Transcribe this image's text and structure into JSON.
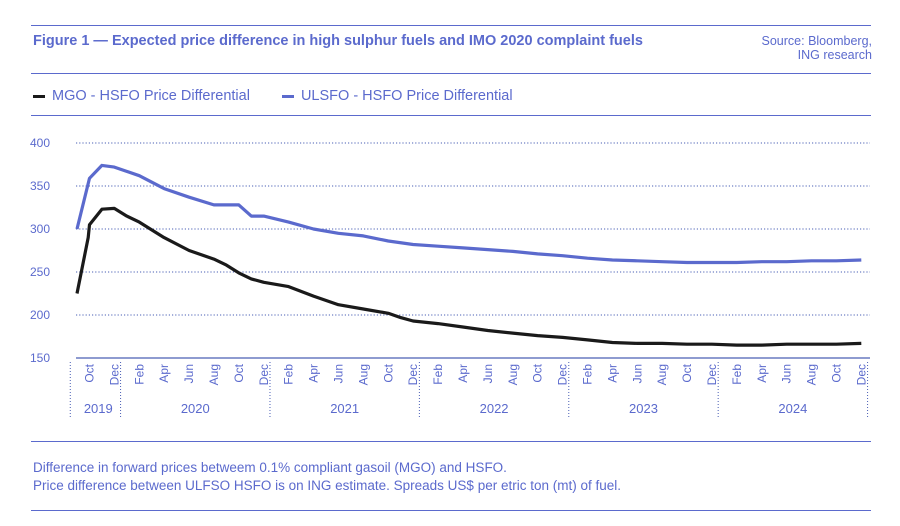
{
  "header": {
    "title": "Figure 1 — Expected price difference in high sulphur fuels and IMO 2020 complaint fuels",
    "source_line1": "Source: Bloomberg,",
    "source_line2": "ING research"
  },
  "legend": {
    "items": [
      {
        "label": "MGO - HSFO Price Differential",
        "color": "#1a1a1a"
      },
      {
        "label": "ULSFO - HSFO Price Differential",
        "color": "#5b6acd"
      }
    ]
  },
  "footnote": {
    "line1": "Difference in forward prices betweem 0.1% compliant gasoil (MGO) and HSFO.",
    "line2": "Price difference between ULFSO HSFO is on ING estimate. Spreads US$ per etric ton (mt) of fuel."
  },
  "chart_data": {
    "type": "line",
    "title": "Figure 1 — Expected price difference in high sulphur fuels and IMO 2020 complaint fuels",
    "xlabel": "",
    "ylabel": "",
    "ylim": [
      150,
      400
    ],
    "yticks": [
      150,
      200,
      250,
      300,
      350,
      400
    ],
    "grid": true,
    "legend_position": "top-left",
    "x_start": "2019-09",
    "month_tick_labels": [
      {
        "month_index": 1,
        "label": "Oct"
      },
      {
        "month_index": 3,
        "label": "Dec"
      },
      {
        "month_index": 5,
        "label": "Feb"
      },
      {
        "month_index": 7,
        "label": "Apr"
      },
      {
        "month_index": 9,
        "label": "Jun"
      },
      {
        "month_index": 11,
        "label": "Aug"
      },
      {
        "month_index": 13,
        "label": "Oct"
      },
      {
        "month_index": 15,
        "label": "Dec"
      },
      {
        "month_index": 17,
        "label": "Feb"
      },
      {
        "month_index": 19,
        "label": "Apr"
      },
      {
        "month_index": 21,
        "label": "Jun"
      },
      {
        "month_index": 23,
        "label": "Aug"
      },
      {
        "month_index": 25,
        "label": "Oct"
      },
      {
        "month_index": 27,
        "label": "Dec"
      },
      {
        "month_index": 29,
        "label": "Feb"
      },
      {
        "month_index": 31,
        "label": "Apr"
      },
      {
        "month_index": 33,
        "label": "Jun"
      },
      {
        "month_index": 35,
        "label": "Aug"
      },
      {
        "month_index": 37,
        "label": "Oct"
      },
      {
        "month_index": 39,
        "label": "Dec"
      },
      {
        "month_index": 41,
        "label": "Feb"
      },
      {
        "month_index": 43,
        "label": "Apr"
      },
      {
        "month_index": 45,
        "label": "Jun"
      },
      {
        "month_index": 47,
        "label": "Aug"
      },
      {
        "month_index": 49,
        "label": "Oct"
      },
      {
        "month_index": 51,
        "label": "Dec"
      },
      {
        "month_index": 53,
        "label": "Feb"
      },
      {
        "month_index": 55,
        "label": "Apr"
      },
      {
        "month_index": 57,
        "label": "Jun"
      },
      {
        "month_index": 59,
        "label": "Aug"
      },
      {
        "month_index": 61,
        "label": "Oct"
      },
      {
        "month_index": 63,
        "label": "Dec"
      }
    ],
    "year_groups": [
      {
        "label": "2019",
        "start_index": 0,
        "end_index": 3
      },
      {
        "label": "2020",
        "start_index": 4,
        "end_index": 15
      },
      {
        "label": "2021",
        "start_index": 16,
        "end_index": 27
      },
      {
        "label": "2022",
        "start_index": 28,
        "end_index": 39
      },
      {
        "label": "2023",
        "start_index": 40,
        "end_index": 51
      },
      {
        "label": "2024",
        "start_index": 52,
        "end_index": 63
      }
    ],
    "series": [
      {
        "name": "MGO - HSFO Price Differential",
        "color": "#1a1a1a",
        "points": [
          [
            0,
            225
          ],
          [
            0.9,
            290
          ],
          [
            1,
            305
          ],
          [
            2,
            323
          ],
          [
            3,
            324
          ],
          [
            4,
            315
          ],
          [
            5,
            308
          ],
          [
            7,
            290
          ],
          [
            9,
            275
          ],
          [
            11,
            265
          ],
          [
            12,
            258
          ],
          [
            13,
            249
          ],
          [
            14,
            242
          ],
          [
            15,
            238
          ],
          [
            17,
            233
          ],
          [
            19,
            222
          ],
          [
            21,
            212
          ],
          [
            23,
            207
          ],
          [
            25,
            202
          ],
          [
            26,
            197
          ],
          [
            27,
            193
          ],
          [
            29,
            190
          ],
          [
            31,
            186
          ],
          [
            33,
            182
          ],
          [
            35,
            179
          ],
          [
            37,
            176
          ],
          [
            39,
            174
          ],
          [
            41,
            171
          ],
          [
            43,
            168
          ],
          [
            45,
            167
          ],
          [
            47,
            167
          ],
          [
            49,
            166
          ],
          [
            51,
            166
          ],
          [
            53,
            165
          ],
          [
            55,
            165
          ],
          [
            57,
            166
          ],
          [
            59,
            166
          ],
          [
            61,
            166
          ],
          [
            63,
            167
          ]
        ]
      },
      {
        "name": "ULSFO - HSFO Price Differential",
        "color": "#5b6acd",
        "points": [
          [
            0,
            300
          ],
          [
            1,
            359
          ],
          [
            2,
            374
          ],
          [
            3,
            372
          ],
          [
            5,
            362
          ],
          [
            7,
            347
          ],
          [
            9,
            337
          ],
          [
            11,
            328
          ],
          [
            13,
            328
          ],
          [
            14,
            315
          ],
          [
            15,
            315
          ],
          [
            17,
            308
          ],
          [
            19,
            300
          ],
          [
            21,
            295
          ],
          [
            23,
            292
          ],
          [
            25,
            286
          ],
          [
            27,
            282
          ],
          [
            29,
            280
          ],
          [
            31,
            278
          ],
          [
            33,
            276
          ],
          [
            35,
            274
          ],
          [
            37,
            271
          ],
          [
            39,
            269
          ],
          [
            41,
            266
          ],
          [
            43,
            264
          ],
          [
            45,
            263
          ],
          [
            47,
            262
          ],
          [
            49,
            261
          ],
          [
            51,
            261
          ],
          [
            53,
            261
          ],
          [
            55,
            262
          ],
          [
            57,
            262
          ],
          [
            59,
            263
          ],
          [
            61,
            263
          ],
          [
            63,
            264
          ]
        ]
      }
    ]
  }
}
